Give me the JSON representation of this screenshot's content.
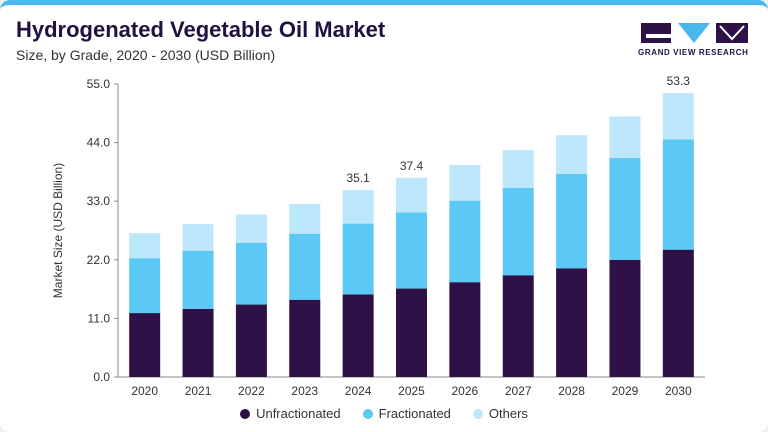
{
  "header": {
    "title": "Hydrogenated Vegetable Oil Market",
    "subtitle": "Size, by Grade, 2020 - 2030 (USD Billion)"
  },
  "logo": {
    "text": "GRAND VIEW RESEARCH",
    "icon": "grand-view-research-logo"
  },
  "colors": {
    "accent_bar": "#49b8ec",
    "series": [
      "#2d1147",
      "#5bc8f5",
      "#bde7fb"
    ]
  },
  "chart_data": {
    "type": "bar",
    "stacked": true,
    "title": "Hydrogenated Vegetable Oil Market",
    "subtitle": "Size, by Grade, 2020 - 2030 (USD Billion)",
    "xlabel": "",
    "ylabel": "Market Size (USD Billion)",
    "ylim": [
      0,
      55
    ],
    "yticks": [
      "0.0",
      "11.0",
      "22.0",
      "33.0",
      "44.0",
      "55.0"
    ],
    "categories": [
      "2020",
      "2021",
      "2022",
      "2023",
      "2024",
      "2025",
      "2026",
      "2027",
      "2028",
      "2029",
      "2030"
    ],
    "series": [
      {
        "name": "Unfractionated",
        "values": [
          12.0,
          12.8,
          13.6,
          14.5,
          15.5,
          16.6,
          17.8,
          19.1,
          20.4,
          22.0,
          23.9
        ]
      },
      {
        "name": "Fractionated",
        "values": [
          10.3,
          10.9,
          11.6,
          12.4,
          13.3,
          14.3,
          15.3,
          16.4,
          17.7,
          19.1,
          20.7
        ]
      },
      {
        "name": "Others",
        "values": [
          4.7,
          5.0,
          5.3,
          5.6,
          6.3,
          6.5,
          6.7,
          7.1,
          7.3,
          7.8,
          8.7
        ]
      }
    ],
    "totals": [
      27.0,
      28.7,
      30.5,
      32.5,
      35.1,
      37.4,
      39.8,
      42.6,
      45.4,
      48.9,
      53.3
    ],
    "data_labels": [
      {
        "category": "2024",
        "text": "35.1"
      },
      {
        "category": "2025",
        "text": "37.4"
      },
      {
        "category": "2030",
        "text": "53.3"
      }
    ],
    "legend": "bottom-center",
    "grid": false
  }
}
